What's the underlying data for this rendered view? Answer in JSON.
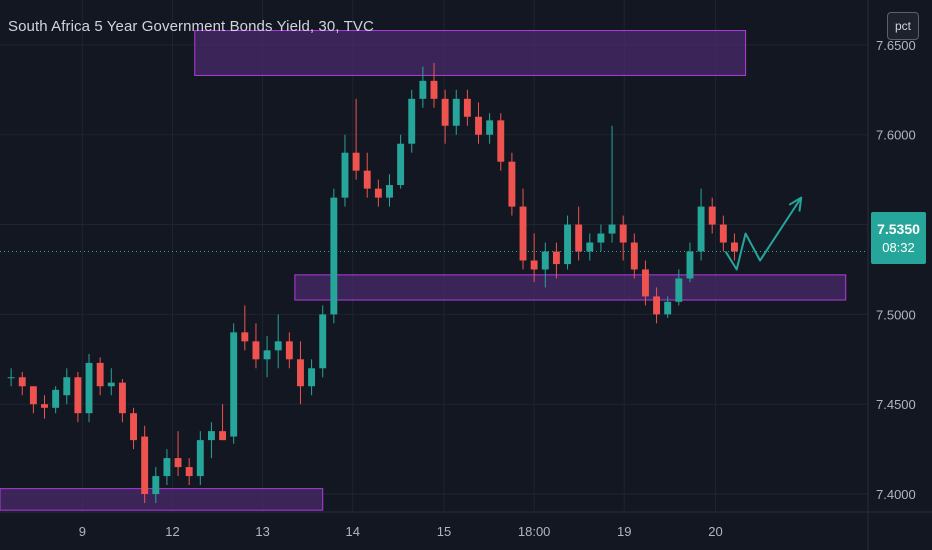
{
  "header": {
    "title": "South Africa 5 Year Government Bonds Yield, 30, TVC"
  },
  "scale_button": {
    "label": "pct"
  },
  "last_price": {
    "value": "7.5350",
    "countdown": "08:32"
  },
  "colors": {
    "up": "#26a69a",
    "down": "#ef5350",
    "zone_fill": "#4a2a6b",
    "zone_border": "#b13ce0",
    "arrow": "#26a69a",
    "background": "#131722"
  },
  "chart_data": {
    "type": "candlestick",
    "title": "South Africa 5 Year Government Bonds Yield, 30, TVC",
    "x_ticks": [
      "9",
      "12",
      "13",
      "14",
      "15",
      "18:00",
      "19",
      "20"
    ],
    "x_tick_positions": [
      1.4,
      9.5,
      17.6,
      25.7,
      33.9,
      42.0,
      50.1,
      58.3
    ],
    "y_ticks": [
      "7.4000",
      "7.4500",
      "7.5000",
      "7.5500",
      "7.6000",
      "7.6500"
    ],
    "ylim": [
      7.39,
      7.675
    ],
    "grid": true,
    "last_value": 7.535,
    "zones": [
      {
        "x_start": 11.5,
        "x_end": 61.0,
        "y_low": 7.633,
        "y_high": 7.658
      },
      {
        "x_start": 20.5,
        "x_end": 70.0,
        "y_low": 7.508,
        "y_high": 7.522
      },
      {
        "x_start": -6.0,
        "x_end": 23.0,
        "y_low": 7.391,
        "y_high": 7.403
      }
    ],
    "projection": [
      {
        "x": 59.2,
        "y": 7.535
      },
      {
        "x": 60.2,
        "y": 7.525
      },
      {
        "x": 61.0,
        "y": 7.545
      },
      {
        "x": 62.3,
        "y": 7.53
      },
      {
        "x": 66.0,
        "y": 7.565
      }
    ],
    "candles": [
      [
        -5,
        7.465,
        7.47,
        7.46,
        7.465
      ],
      [
        -4,
        7.465,
        7.468,
        7.455,
        7.46
      ],
      [
        -3,
        7.46,
        7.46,
        7.445,
        7.45
      ],
      [
        -2,
        7.45,
        7.455,
        7.442,
        7.448
      ],
      [
        -1,
        7.448,
        7.46,
        7.445,
        7.458
      ],
      [
        0,
        7.455,
        7.47,
        7.45,
        7.465
      ],
      [
        1,
        7.465,
        7.468,
        7.44,
        7.445
      ],
      [
        2,
        7.445,
        7.478,
        7.44,
        7.473
      ],
      [
        3,
        7.473,
        7.476,
        7.455,
        7.46
      ],
      [
        4,
        7.46,
        7.47,
        7.455,
        7.462
      ],
      [
        5,
        7.462,
        7.464,
        7.44,
        7.445
      ],
      [
        6,
        7.445,
        7.448,
        7.425,
        7.43
      ],
      [
        7,
        7.432,
        7.438,
        7.395,
        7.4
      ],
      [
        8,
        7.4,
        7.415,
        7.395,
        7.41
      ],
      [
        9,
        7.41,
        7.425,
        7.405,
        7.42
      ],
      [
        10,
        7.42,
        7.435,
        7.41,
        7.415
      ],
      [
        11,
        7.415,
        7.42,
        7.405,
        7.41
      ],
      [
        12,
        7.41,
        7.435,
        7.405,
        7.43
      ],
      [
        13,
        7.43,
        7.44,
        7.42,
        7.435
      ],
      [
        14,
        7.435,
        7.45,
        7.43,
        7.43
      ],
      [
        15,
        7.432,
        7.495,
        7.428,
        7.49
      ],
      [
        16,
        7.49,
        7.505,
        7.48,
        7.485
      ],
      [
        17,
        7.485,
        7.495,
        7.47,
        7.475
      ],
      [
        18,
        7.475,
        7.488,
        7.465,
        7.48
      ],
      [
        19,
        7.48,
        7.5,
        7.47,
        7.485
      ],
      [
        20,
        7.485,
        7.49,
        7.47,
        7.475
      ],
      [
        21,
        7.475,
        7.485,
        7.45,
        7.46
      ],
      [
        22,
        7.46,
        7.475,
        7.455,
        7.47
      ],
      [
        23,
        7.47,
        7.505,
        7.465,
        7.5
      ],
      [
        24,
        7.5,
        7.57,
        7.495,
        7.565
      ],
      [
        25,
        7.565,
        7.6,
        7.56,
        7.59
      ],
      [
        26,
        7.59,
        7.62,
        7.575,
        7.58
      ],
      [
        27,
        7.58,
        7.59,
        7.565,
        7.57
      ],
      [
        28,
        7.57,
        7.575,
        7.56,
        7.565
      ],
      [
        29,
        7.565,
        7.578,
        7.56,
        7.572
      ],
      [
        30,
        7.572,
        7.6,
        7.57,
        7.595
      ],
      [
        31,
        7.595,
        7.625,
        7.59,
        7.62
      ],
      [
        32,
        7.62,
        7.638,
        7.615,
        7.63
      ],
      [
        33,
        7.63,
        7.64,
        7.615,
        7.62
      ],
      [
        34,
        7.62,
        7.625,
        7.595,
        7.605
      ],
      [
        35,
        7.605,
        7.625,
        7.6,
        7.62
      ],
      [
        36,
        7.62,
        7.625,
        7.605,
        7.61
      ],
      [
        37,
        7.61,
        7.618,
        7.595,
        7.6
      ],
      [
        38,
        7.6,
        7.612,
        7.595,
        7.608
      ],
      [
        39,
        7.608,
        7.612,
        7.58,
        7.585
      ],
      [
        40,
        7.585,
        7.59,
        7.555,
        7.56
      ],
      [
        41,
        7.56,
        7.57,
        7.525,
        7.53
      ],
      [
        42,
        7.53,
        7.545,
        7.518,
        7.525
      ],
      [
        43,
        7.525,
        7.54,
        7.515,
        7.535
      ],
      [
        44,
        7.535,
        7.54,
        7.52,
        7.528
      ],
      [
        45,
        7.528,
        7.555,
        7.525,
        7.55
      ],
      [
        46,
        7.55,
        7.56,
        7.53,
        7.535
      ],
      [
        47,
        7.535,
        7.545,
        7.53,
        7.54
      ],
      [
        48,
        7.54,
        7.55,
        7.535,
        7.545
      ],
      [
        49,
        7.545,
        7.605,
        7.54,
        7.55
      ],
      [
        50,
        7.55,
        7.555,
        7.53,
        7.54
      ],
      [
        51,
        7.54,
        7.545,
        7.52,
        7.525
      ],
      [
        52,
        7.525,
        7.53,
        7.505,
        7.51
      ],
      [
        53,
        7.51,
        7.515,
        7.495,
        7.5
      ],
      [
        54,
        7.5,
        7.51,
        7.498,
        7.507
      ],
      [
        55,
        7.507,
        7.525,
        7.505,
        7.52
      ],
      [
        56,
        7.52,
        7.54,
        7.518,
        7.535
      ],
      [
        57,
        7.535,
        7.57,
        7.53,
        7.56
      ],
      [
        58,
        7.56,
        7.565,
        7.545,
        7.55
      ],
      [
        59,
        7.55,
        7.555,
        7.535,
        7.54
      ],
      [
        60,
        7.54,
        7.545,
        7.53,
        7.535
      ]
    ]
  }
}
